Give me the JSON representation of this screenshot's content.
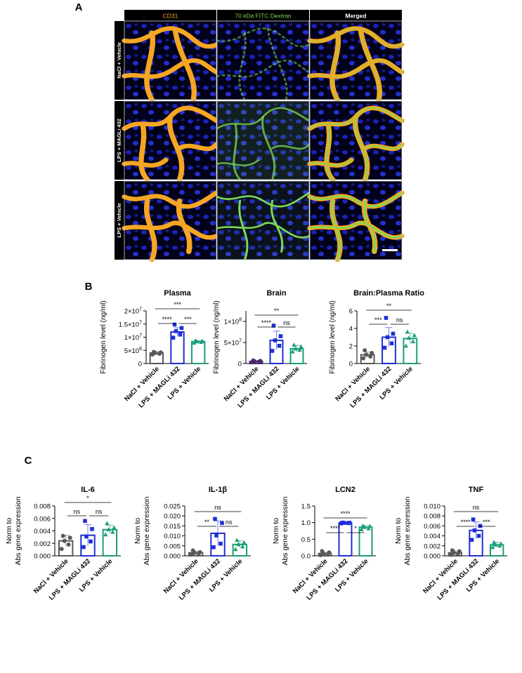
{
  "panel_letters": [
    "A",
    "B",
    "C"
  ],
  "panel_a": {
    "columns": [
      "CD31",
      "70 kDa FITC Dextran",
      "Merged"
    ],
    "rows": [
      "NaCl + Vehicle",
      "LPS + MAGLi 432",
      "LPS + Vehicle"
    ]
  },
  "groups": [
    "NaCl + Vehicle",
    "LPS + MAGLi 432",
    "LPS + Vehicle"
  ],
  "colors": {
    "nacl": "#595959",
    "magli": "#1f2fd6",
    "lps": "#1a9e7a",
    "nacl_brain": "#4a2a6b",
    "cd31": "#f5a623",
    "dextran": "#7ed957"
  },
  "chart_data": [
    {
      "id": "plasma",
      "panel": "B",
      "type": "bar",
      "title": "Plasma",
      "ylabel": "Fibrinogen level (ng/ml)",
      "categories": [
        "NaCl + Vehicle",
        "LPS + MAGLi 432",
        "LPS + Vehicle"
      ],
      "values": [
        4000000,
        12000000,
        8300000
      ],
      "sd": [
        600000,
        1600000,
        500000
      ],
      "points": [
        [
          3400000,
          3700000,
          4000000,
          4200000,
          4400000
        ],
        [
          9800000,
          11000000,
          12300000,
          13500000,
          14800000
        ],
        [
          7800000,
          8100000,
          8300000,
          8500000,
          8700000
        ]
      ],
      "ylim": [
        0,
        20000000
      ],
      "yticks": [
        0,
        5000000,
        10000000,
        15000000,
        20000000
      ],
      "ytick_labels": [
        "0",
        "5×10^6",
        "1×10^7",
        "1.5×10^7",
        "2×10^7"
      ],
      "significance": [
        {
          "from": 0,
          "to": 1,
          "label": "****"
        },
        {
          "from": 1,
          "to": 2,
          "label": "***"
        },
        {
          "from": 0,
          "to": 2,
          "label": "***"
        }
      ]
    },
    {
      "id": "brain",
      "panel": "B",
      "type": "bar",
      "title": "Brain",
      "ylabel": "Fibrinogen level (ng/ml)",
      "categories": [
        "NaCl + Vehicle",
        "LPS + MAGLi 432",
        "LPS + Vehicle"
      ],
      "values": [
        5000000,
        55000000,
        35000000
      ],
      "sd": [
        2000000,
        22000000,
        8000000
      ],
      "points": [
        [
          3000000,
          4000000,
          5000000,
          6000000,
          7000000
        ],
        [
          30000000,
          42000000,
          55000000,
          65000000,
          90000000
        ],
        [
          28000000,
          32000000,
          35000000,
          40000000,
          44000000
        ]
      ],
      "ylim": [
        0,
        125000000
      ],
      "yticks": [
        0,
        50000000,
        100000000
      ],
      "ytick_labels": [
        "0",
        "5×10^7",
        "1×10^8"
      ],
      "significance": [
        {
          "from": 0,
          "to": 1,
          "label": "****"
        },
        {
          "from": 1,
          "to": 2,
          "label": "ns"
        },
        {
          "from": 0,
          "to": 2,
          "label": "**"
        }
      ]
    },
    {
      "id": "ratio",
      "panel": "B",
      "type": "bar",
      "title": "Brain:Plasma Ratio",
      "ylabel": "Fibrinogen level (ng/ml)",
      "categories": [
        "NaCl + Vehicle",
        "LPS + MAGLi 432",
        "LPS + Vehicle"
      ],
      "values": [
        1.0,
        3.0,
        2.85
      ],
      "sd": [
        0.3,
        1.1,
        0.6
      ],
      "points": [
        [
          0.6,
          0.8,
          1.0,
          1.2,
          1.5
        ],
        [
          1.8,
          2.3,
          3.0,
          3.4,
          5.2
        ],
        [
          2.0,
          2.5,
          2.9,
          3.2,
          3.6
        ]
      ],
      "ylim": [
        0,
        6
      ],
      "yticks": [
        0,
        2,
        4,
        6
      ],
      "ytick_labels": [
        "0",
        "2",
        "4",
        "6"
      ],
      "significance": [
        {
          "from": 0,
          "to": 1,
          "label": "***"
        },
        {
          "from": 1,
          "to": 2,
          "label": "ns"
        },
        {
          "from": 0,
          "to": 2,
          "label": "**"
        }
      ]
    },
    {
      "id": "il6",
      "panel": "C",
      "type": "bar",
      "title": "IL-6",
      "ylabel": "Norm to Abs gene expression",
      "categories": [
        "NaCl + Vehicle",
        "LPS + MAGLi 432",
        "LPS + Vehicle"
      ],
      "values": [
        0.0024,
        0.0033,
        0.0042
      ],
      "sd": [
        0.0009,
        0.0017,
        0.0007
      ],
      "points": [
        [
          0.0011,
          0.0018,
          0.0024,
          0.0029,
          0.0032
        ],
        [
          0.0014,
          0.0023,
          0.0031,
          0.0043,
          0.0056
        ],
        [
          0.0034,
          0.0038,
          0.0042,
          0.0045,
          0.0052
        ]
      ],
      "ylim": [
        0,
        0.008
      ],
      "yticks": [
        0,
        0.002,
        0.004,
        0.006,
        0.008
      ],
      "ytick_labels": [
        "0.000",
        "0.002",
        "0.004",
        "0.006",
        "0.008"
      ],
      "significance": [
        {
          "from": 0,
          "to": 1,
          "label": "ns"
        },
        {
          "from": 1,
          "to": 2,
          "label": "ns"
        },
        {
          "from": 0,
          "to": 2,
          "label": "*"
        }
      ]
    },
    {
      "id": "il1b",
      "panel": "C",
      "type": "bar",
      "title": "IL-1β",
      "ylabel": "Norm to Abs gene expression",
      "categories": [
        "NaCl + Vehicle",
        "LPS + MAGLi 432",
        "LPS + Vehicle"
      ],
      "values": [
        0.0015,
        0.0113,
        0.0057
      ],
      "sd": [
        0.0008,
        0.0062,
        0.0018
      ],
      "points": [
        [
          0.0006,
          0.0011,
          0.0015,
          0.0018,
          0.0027
        ],
        [
          0.0043,
          0.0061,
          0.0102,
          0.0165,
          0.0185
        ],
        [
          0.0032,
          0.0046,
          0.0057,
          0.0066,
          0.0078
        ]
      ],
      "ylim": [
        0,
        0.025
      ],
      "yticks": [
        0,
        0.005,
        0.01,
        0.015,
        0.02,
        0.025
      ],
      "ytick_labels": [
        "0.000",
        "0.005",
        "0.010",
        "0.015",
        "0.020",
        "0.025"
      ],
      "significance": [
        {
          "from": 0,
          "to": 1,
          "label": "**"
        },
        {
          "from": 1,
          "to": 2,
          "label": "ns"
        },
        {
          "from": 0,
          "to": 2,
          "label": "ns"
        }
      ]
    },
    {
      "id": "lcn2",
      "panel": "C",
      "type": "bar",
      "title": "LCN2",
      "ylabel": "Norm to Abs gene expression",
      "categories": [
        "NaCl + Vehicle",
        "LPS + MAGLi 432",
        "LPS + Vehicle"
      ],
      "values": [
        0.07,
        0.99,
        0.86
      ],
      "sd": [
        0.04,
        0.01,
        0.05
      ],
      "points": [
        [
          0.02,
          0.04,
          0.06,
          0.1,
          0.14
        ],
        [
          0.975,
          0.985,
          0.99,
          0.995,
          1.0
        ],
        [
          0.79,
          0.82,
          0.86,
          0.89,
          0.9
        ]
      ],
      "ylim": [
        0,
        1.5
      ],
      "yticks": [
        0,
        0.5,
        1.0,
        1.5
      ],
      "ytick_labels": [
        "0.0",
        "0.5",
        "1.0",
        "1.5"
      ],
      "significance": [
        {
          "from": 0,
          "to": 1,
          "label": "****"
        },
        {
          "from": 1,
          "to": 2,
          "label": "*"
        },
        {
          "from": 0,
          "to": 2,
          "label": "****"
        }
      ]
    },
    {
      "id": "tnf",
      "panel": "C",
      "type": "bar",
      "title": "TNF",
      "ylabel": "Norm to Abs gene expression",
      "categories": [
        "NaCl + Vehicle",
        "LPS + MAGLi 432",
        "LPS + Vehicle"
      ],
      "values": [
        0.0006,
        0.0051,
        0.0022
      ],
      "sd": [
        0.0004,
        0.0017,
        0.0005
      ],
      "points": [
        [
          0.0002,
          0.0004,
          0.0006,
          0.0009,
          0.0011
        ],
        [
          0.0032,
          0.004,
          0.0051,
          0.006,
          0.0073
        ],
        [
          0.0017,
          0.002,
          0.0022,
          0.0024,
          0.0027
        ]
      ],
      "ylim": [
        0,
        0.01
      ],
      "yticks": [
        0,
        0.002,
        0.004,
        0.006,
        0.008,
        0.01
      ],
      "ytick_labels": [
        "0.000",
        "0.002",
        "0.004",
        "0.006",
        "0.008",
        "0.010"
      ],
      "significance": [
        {
          "from": 0,
          "to": 1,
          "label": "****"
        },
        {
          "from": 1,
          "to": 2,
          "label": "***"
        },
        {
          "from": 0,
          "to": 2,
          "label": "ns"
        }
      ]
    }
  ]
}
